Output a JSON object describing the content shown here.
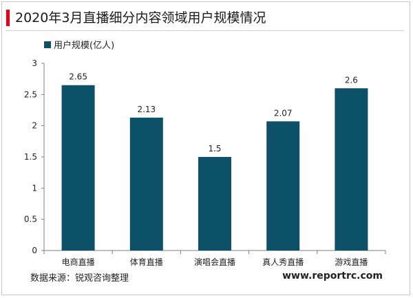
{
  "chart_data": {
    "type": "bar",
    "title": "2020年3月直播细分内容领域用户规模情况",
    "categories": [
      "电商直播",
      "体育直播",
      "演唱会直播",
      "真人秀直播",
      "游戏直播"
    ],
    "series": [
      {
        "name": "用户规模(亿人)",
        "values": [
          2.65,
          2.13,
          1.5,
          2.07,
          2.6
        ]
      }
    ],
    "data_labels": [
      "2.65",
      "2.13",
      "1.5",
      "2.07",
      "2.6"
    ],
    "ylim": [
      0,
      3
    ],
    "yticks": [
      0,
      0.5,
      1,
      1.5,
      2,
      2.5,
      3
    ],
    "ytick_labels": [
      "0",
      "0.5",
      "1",
      "1.5",
      "2",
      "2.5",
      "3"
    ],
    "xlabel": "",
    "ylabel": "",
    "grid": false,
    "legend_position": "top-left",
    "bar_color": "#0d5169",
    "accent_color": "#e60012"
  },
  "source": "数据来源：锐观咨询整理",
  "website": "www.reportrc.com"
}
